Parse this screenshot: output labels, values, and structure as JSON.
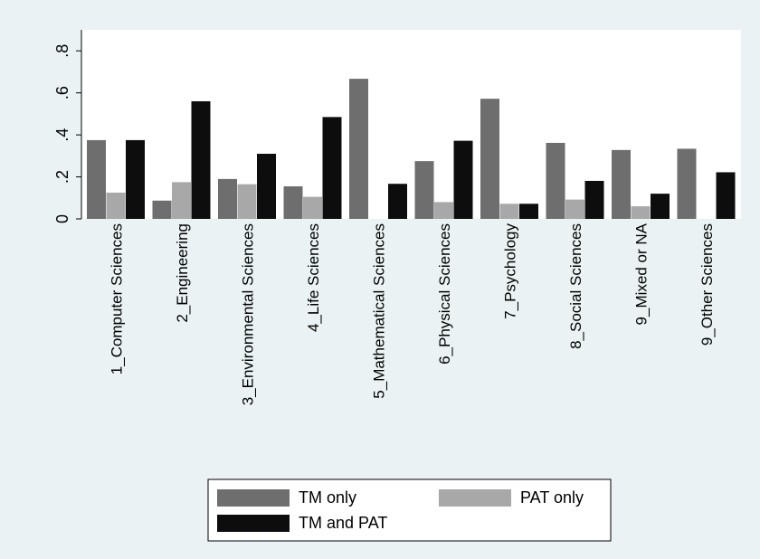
{
  "chart_data": {
    "type": "bar",
    "categories": [
      "1_Computer Sciences",
      "2_Engineering",
      "3_Environmental Sciences",
      "4_Life Sciences",
      "5_Mathematical Sciences",
      "6_Physical Sciences",
      "7_Psychology",
      "8_Social Sciences",
      "9_Mixed or NA",
      "9_Other Sciences"
    ],
    "series": [
      {
        "name": "TM only",
        "color": "#6e6e6e",
        "values": [
          0.375,
          0.087,
          0.19,
          0.155,
          0.667,
          0.275,
          0.572,
          0.362,
          0.328,
          0.334
        ]
      },
      {
        "name": "PAT only",
        "color": "#a8a8a8",
        "values": [
          0.125,
          0.175,
          0.165,
          0.105,
          0.0,
          0.08,
          0.072,
          0.092,
          0.06,
          0.0
        ]
      },
      {
        "name": "TM and PAT",
        "color": "#0d0d0d",
        "values": [
          0.375,
          0.56,
          0.31,
          0.485,
          0.167,
          0.372,
          0.072,
          0.181,
          0.12,
          0.222
        ]
      }
    ],
    "yticks": [
      0,
      0.2,
      0.4,
      0.6,
      0.8
    ],
    "ytick_labels": [
      "0",
      ".2",
      ".4",
      ".6",
      ".8"
    ],
    "ylim": [
      0,
      0.9
    ],
    "grid": false,
    "legend_position": "bottom"
  }
}
